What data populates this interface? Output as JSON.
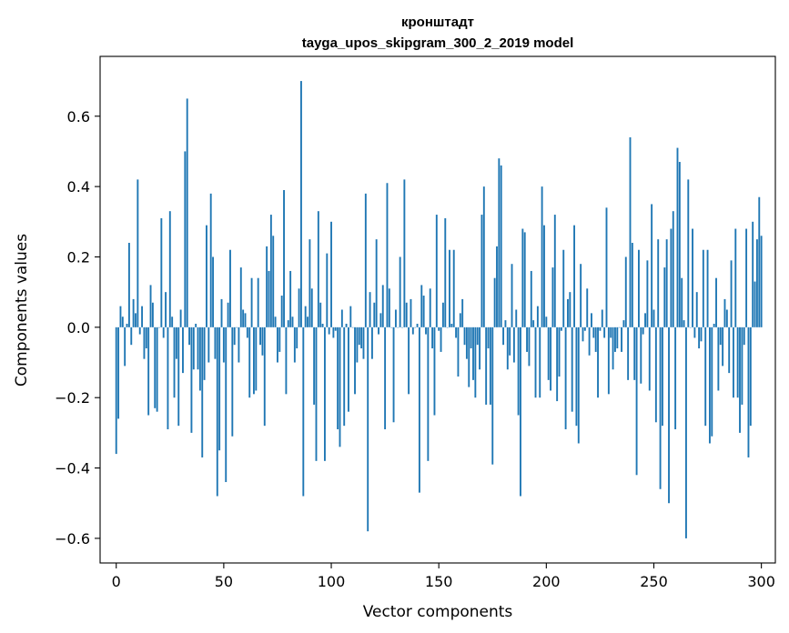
{
  "chart_data": {
    "type": "bar",
    "title": "кронштадт",
    "subtitle": "tayga_upos_skipgram_300_2_2019 model",
    "xlabel": "Vector components",
    "ylabel": "Components values",
    "xlim": [
      -7.5,
      306.5
    ],
    "ylim": [
      -0.67,
      0.77
    ],
    "xticks": [
      0,
      50,
      100,
      150,
      200,
      250,
      300
    ],
    "yticks": [
      -0.6,
      -0.4,
      -0.2,
      0.0,
      0.2,
      0.4,
      0.6
    ],
    "ytick_labels": [
      "−0.6",
      "−0.4",
      "−0.2",
      "0.0",
      "0.2",
      "0.4",
      "0.6"
    ],
    "xtick_labels": [
      "0",
      "50",
      "100",
      "150",
      "200",
      "250",
      "300"
    ],
    "bar_color": "#1f77b4",
    "values": [
      -0.36,
      -0.26,
      0.06,
      0.03,
      -0.11,
      0.01,
      0.24,
      -0.05,
      0.08,
      0.04,
      0.42,
      -0.02,
      0.06,
      -0.09,
      -0.06,
      -0.25,
      0.12,
      0.07,
      -0.23,
      -0.24,
      0.0,
      0.31,
      -0.03,
      0.1,
      -0.29,
      0.33,
      0.03,
      -0.2,
      -0.09,
      -0.28,
      0.05,
      -0.13,
      0.5,
      0.65,
      -0.05,
      -0.3,
      -0.12,
      0.01,
      -0.12,
      -0.18,
      -0.37,
      -0.15,
      0.29,
      -0.1,
      0.38,
      0.2,
      -0.09,
      -0.48,
      -0.35,
      0.08,
      -0.1,
      -0.44,
      0.07,
      0.22,
      -0.31,
      -0.05,
      0.0,
      -0.1,
      0.17,
      0.05,
      0.04,
      -0.03,
      -0.2,
      0.14,
      -0.19,
      -0.18,
      0.14,
      -0.05,
      -0.08,
      -0.28,
      0.23,
      0.16,
      0.32,
      0.26,
      0.03,
      -0.1,
      -0.07,
      0.09,
      0.39,
      -0.19,
      0.02,
      0.16,
      0.03,
      -0.1,
      -0.06,
      0.11,
      0.7,
      -0.48,
      0.06,
      0.03,
      0.25,
      0.11,
      -0.22,
      -0.38,
      0.33,
      0.07,
      0.01,
      -0.38,
      0.21,
      -0.02,
      0.3,
      -0.03,
      -0.01,
      -0.29,
      -0.34,
      0.05,
      -0.28,
      0.01,
      -0.24,
      0.06,
      0.0,
      -0.19,
      -0.1,
      -0.05,
      -0.06,
      -0.09,
      0.38,
      -0.58,
      0.1,
      -0.09,
      0.07,
      0.25,
      -0.02,
      0.04,
      0.12,
      -0.29,
      0.41,
      0.11,
      0.0,
      -0.27,
      0.05,
      0.0,
      0.2,
      0.0,
      0.42,
      0.07,
      -0.19,
      0.08,
      -0.02,
      0.0,
      0.01,
      -0.47,
      0.12,
      0.09,
      -0.02,
      -0.38,
      0.11,
      -0.06,
      -0.25,
      0.32,
      -0.01,
      -0.07,
      0.07,
      0.31,
      0.0,
      0.22,
      0.01,
      0.22,
      -0.03,
      -0.14,
      0.04,
      0.08,
      -0.05,
      -0.09,
      -0.17,
      -0.06,
      -0.15,
      -0.2,
      -0.05,
      -0.12,
      0.32,
      0.4,
      -0.22,
      -0.06,
      -0.22,
      -0.39,
      0.14,
      0.23,
      0.48,
      0.46,
      -0.05,
      0.02,
      -0.12,
      -0.08,
      0.18,
      -0.1,
      0.05,
      -0.25,
      -0.48,
      0.28,
      0.27,
      -0.07,
      -0.11,
      0.16,
      0.02,
      -0.2,
      0.06,
      -0.2,
      0.4,
      0.29,
      0.03,
      -0.15,
      -0.18,
      0.17,
      0.32,
      -0.21,
      -0.14,
      -0.01,
      0.22,
      -0.29,
      0.08,
      0.1,
      -0.24,
      0.29,
      -0.28,
      -0.33,
      0.18,
      -0.04,
      -0.01,
      0.11,
      -0.08,
      0.04,
      -0.03,
      -0.07,
      -0.2,
      -0.01,
      0.05,
      -0.03,
      0.34,
      -0.19,
      -0.03,
      -0.12,
      -0.07,
      -0.06,
      0.0,
      -0.07,
      0.02,
      0.2,
      -0.15,
      0.54,
      0.24,
      -0.15,
      -0.42,
      0.22,
      -0.16,
      -0.02,
      0.04,
      0.19,
      -0.18,
      0.35,
      0.05,
      -0.27,
      0.25,
      -0.46,
      -0.28,
      0.17,
      0.25,
      -0.5,
      0.28,
      0.33,
      -0.29,
      0.51,
      0.47,
      0.14,
      0.02,
      -0.6,
      0.42,
      0.0,
      0.28,
      -0.03,
      0.1,
      -0.06,
      -0.04,
      0.22,
      -0.28,
      0.22,
      -0.33,
      -0.31,
      0.01,
      0.14,
      -0.18,
      -0.05,
      -0.11,
      0.08,
      0.05,
      -0.13,
      0.19,
      -0.2,
      0.28,
      -0.2,
      -0.3,
      -0.22,
      -0.05,
      0.28,
      -0.37,
      -0.28,
      0.3,
      0.13,
      0.25,
      0.37,
      0.26
    ]
  }
}
